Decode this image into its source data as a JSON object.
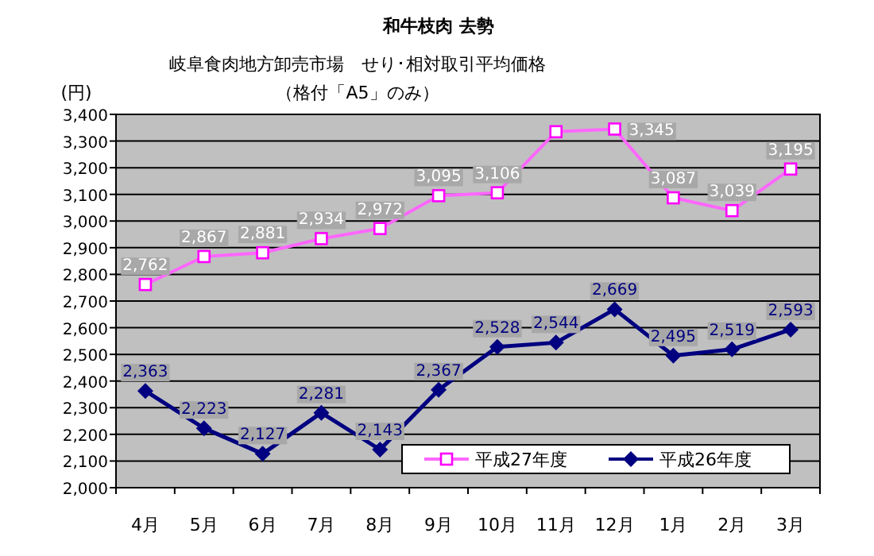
{
  "chart_data": {
    "type": "line",
    "title": "和牛枝肉 去勢",
    "subtitle": "岐阜食肉地方卸売市場　せり･相対取引平均価格",
    "annotations": [
      "（格付「A5」のみ）"
    ],
    "ylabel": "(円)",
    "categories": [
      "4月",
      "5月",
      "6月",
      "7月",
      "8月",
      "9月",
      "10月",
      "11月",
      "12月",
      "1月",
      "2月",
      "3月"
    ],
    "ylim": [
      2000,
      3400
    ],
    "yticks": [
      {
        "value": 2000,
        "label": "2,000"
      },
      {
        "value": 2100,
        "label": "2,100"
      },
      {
        "value": 2200,
        "label": "2,200"
      },
      {
        "value": 2300,
        "label": "2,300"
      },
      {
        "value": 2400,
        "label": "2,400"
      },
      {
        "value": 2500,
        "label": "2,500"
      },
      {
        "value": 2600,
        "label": "2,600"
      },
      {
        "value": 2700,
        "label": "2,700"
      },
      {
        "value": 2800,
        "label": "2,800"
      },
      {
        "value": 2900,
        "label": "2,900"
      },
      {
        "value": 3000,
        "label": "3,000"
      },
      {
        "value": 3100,
        "label": "3,100"
      },
      {
        "value": 3200,
        "label": "3,200"
      },
      {
        "value": 3300,
        "label": "3,300"
      },
      {
        "value": 3400,
        "label": "3,400"
      }
    ],
    "grid": "y",
    "legend": "bottom right",
    "line_style": "solid",
    "series": [
      {
        "name": "平成27年度",
        "color": "#ff00ff",
        "marker": "square",
        "values": [
          2762,
          2867,
          2881,
          2934,
          2972,
          3095,
          3106,
          3335,
          3345,
          3087,
          3039,
          3195
        ],
        "value_labels": [
          "2,762",
          "2,867",
          "2,881",
          "2,934",
          "2,972",
          "3,095",
          "3,106",
          null,
          "3,345",
          "3,087",
          "3,039",
          "3,195"
        ]
      },
      {
        "name": "平成26年度",
        "color": "#000080",
        "marker": "diamond",
        "values": [
          2363,
          2223,
          2127,
          2281,
          2143,
          2367,
          2528,
          2544,
          2669,
          2495,
          2519,
          2593
        ],
        "value_labels": [
          "2,363",
          "2,223",
          "2,127",
          "2,281",
          "2,143",
          "2,367",
          "2,528",
          "2,544",
          "2,669",
          "2,495",
          "2,519",
          "2,593"
        ]
      }
    ]
  }
}
